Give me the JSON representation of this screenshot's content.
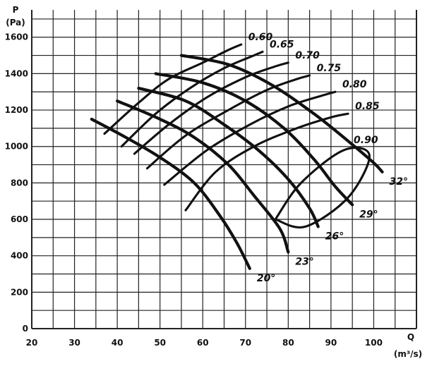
{
  "chart_data": {
    "type": "line",
    "title": "",
    "x_axis": {
      "label_top": "Q",
      "label_bottom": "(m³/s)",
      "ticks": [
        20,
        30,
        40,
        50,
        60,
        70,
        80,
        90,
        100
      ],
      "range": [
        20,
        110
      ]
    },
    "y_axis": {
      "label_top": "P",
      "label_bottom": "(Pa)",
      "ticks": [
        0,
        200,
        400,
        600,
        800,
        1000,
        1200,
        1400,
        1600
      ],
      "range": [
        0,
        1750
      ]
    },
    "grid": true,
    "series": [
      {
        "name": "20°",
        "kind": "blade-angle",
        "points": [
          [
            34,
            1150
          ],
          [
            42,
            1050
          ],
          [
            50,
            940
          ],
          [
            58,
            800
          ],
          [
            64,
            620
          ],
          [
            68,
            470
          ],
          [
            71,
            330
          ]
        ]
      },
      {
        "name": "23°",
        "kind": "blade-angle",
        "points": [
          [
            40,
            1250
          ],
          [
            50,
            1150
          ],
          [
            58,
            1050
          ],
          [
            66,
            900
          ],
          [
            72,
            730
          ],
          [
            78,
            550
          ],
          [
            80,
            420
          ]
        ]
      },
      {
        "name": "26°",
        "kind": "blade-angle",
        "points": [
          [
            45,
            1320
          ],
          [
            56,
            1250
          ],
          [
            65,
            1120
          ],
          [
            73,
            980
          ],
          [
            80,
            820
          ],
          [
            85,
            660
          ],
          [
            87,
            560
          ]
        ]
      },
      {
        "name": "29°",
        "kind": "blade-angle",
        "points": [
          [
            49,
            1400
          ],
          [
            60,
            1350
          ],
          [
            70,
            1250
          ],
          [
            79,
            1100
          ],
          [
            86,
            930
          ],
          [
            91,
            780
          ],
          [
            95,
            680
          ]
        ]
      },
      {
        "name": "32°",
        "kind": "blade-angle",
        "points": [
          [
            55,
            1500
          ],
          [
            66,
            1450
          ],
          [
            76,
            1340
          ],
          [
            86,
            1180
          ],
          [
            94,
            1030
          ],
          [
            100,
            910
          ],
          [
            102,
            860
          ]
        ]
      },
      {
        "name": "0.60",
        "kind": "efficiency",
        "points": [
          [
            37,
            1070
          ],
          [
            45,
            1240
          ],
          [
            52,
            1370
          ],
          [
            60,
            1460
          ],
          [
            66,
            1530
          ],
          [
            69,
            1560
          ]
        ]
      },
      {
        "name": "0.65",
        "kind": "efficiency",
        "points": [
          [
            41,
            1000
          ],
          [
            49,
            1180
          ],
          [
            57,
            1320
          ],
          [
            65,
            1430
          ],
          [
            72,
            1500
          ],
          [
            74,
            1520
          ]
        ]
      },
      {
        "name": "0.70",
        "kind": "efficiency",
        "points": [
          [
            44,
            960
          ],
          [
            52,
            1120
          ],
          [
            61,
            1270
          ],
          [
            70,
            1380
          ],
          [
            77,
            1440
          ],
          [
            80,
            1460
          ]
        ]
      },
      {
        "name": "0.75",
        "kind": "efficiency",
        "points": [
          [
            47,
            880
          ],
          [
            56,
            1060
          ],
          [
            66,
            1200
          ],
          [
            75,
            1310
          ],
          [
            82,
            1370
          ],
          [
            85,
            1390
          ]
        ]
      },
      {
        "name": "0.80",
        "kind": "efficiency",
        "points": [
          [
            51,
            790
          ],
          [
            61,
            980
          ],
          [
            71,
            1120
          ],
          [
            80,
            1220
          ],
          [
            88,
            1280
          ],
          [
            91,
            1300
          ]
        ]
      },
      {
        "name": "0.85",
        "kind": "efficiency",
        "points": [
          [
            56,
            650
          ],
          [
            63,
            860
          ],
          [
            72,
            1000
          ],
          [
            82,
            1100
          ],
          [
            90,
            1160
          ],
          [
            94,
            1180
          ]
        ]
      },
      {
        "name": "0.90",
        "kind": "efficiency-closed",
        "points": [
          [
            77,
            600
          ],
          [
            83,
            800
          ],
          [
            93,
            980
          ],
          [
            99,
            950
          ],
          [
            94,
            720
          ],
          [
            84,
            560
          ],
          [
            77,
            600
          ]
        ]
      }
    ]
  }
}
